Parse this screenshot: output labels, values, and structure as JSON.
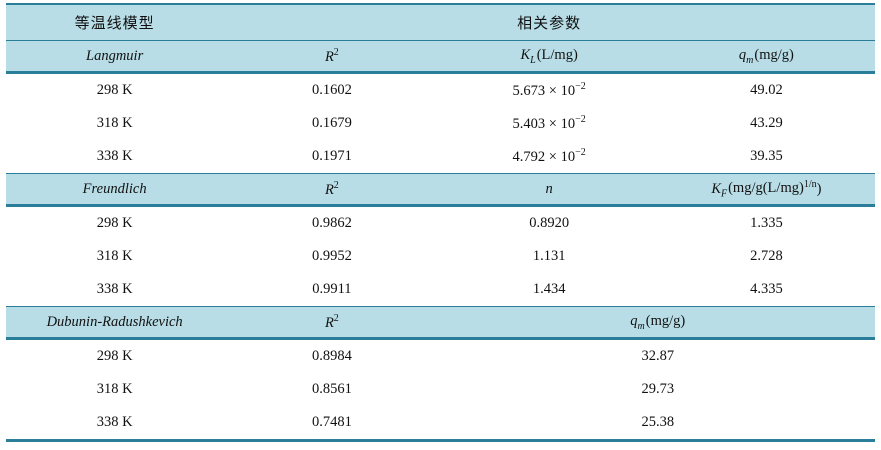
{
  "colors": {
    "header_bg": "#b8dde6",
    "rule": "#2b7e99",
    "text": "#111111"
  },
  "table": {
    "top_header": {
      "model_label": "等温线模型",
      "params_label": "相关参数"
    },
    "sections": [
      {
        "model": "Langmuir",
        "headers": {
          "c2": {
            "sym": "R",
            "sup": "2"
          },
          "c3": {
            "sym": "K",
            "sub": "L",
            "unit": "(L/mg)"
          },
          "c4": {
            "sym": "q",
            "sub": "m",
            "unit": "(mg/g)"
          }
        },
        "rows": [
          {
            "temp": "298 K",
            "r2": "0.1602",
            "c3_mant": "5.673 × 10",
            "c3_exp": "−2",
            "c4": "49.02"
          },
          {
            "temp": "318 K",
            "r2": "0.1679",
            "c3_mant": "5.403 × 10",
            "c3_exp": "−2",
            "c4": "43.29"
          },
          {
            "temp": "338 K",
            "r2": "0.1971",
            "c3_mant": "4.792 × 10",
            "c3_exp": "−2",
            "c4": "39.35"
          }
        ]
      },
      {
        "model": "Freundlich",
        "headers": {
          "c2": {
            "sym": "R",
            "sup": "2"
          },
          "c3": {
            "sym": "n"
          },
          "c4": {
            "sym": "K",
            "sub": "F",
            "unit_pre": "(mg/g(L/mg)",
            "sup": "1/n",
            "unit_post": ")"
          }
        },
        "rows": [
          {
            "temp": "298 K",
            "r2": "0.9862",
            "c3": "0.8920",
            "c4": "1.335"
          },
          {
            "temp": "318 K",
            "r2": "0.9952",
            "c3": "1.131",
            "c4": "2.728"
          },
          {
            "temp": "338 K",
            "r2": "0.9911",
            "c3": "1.434",
            "c4": "4.335"
          }
        ]
      },
      {
        "model": "Dubunin-Radushkevich",
        "headers": {
          "c2": {
            "sym": "R",
            "sup": "2"
          },
          "c34": {
            "sym": "q",
            "sub": "m",
            "unit": "(mg/g)"
          }
        },
        "rows": [
          {
            "temp": "298 K",
            "r2": "0.8984",
            "c34": "32.87"
          },
          {
            "temp": "318 K",
            "r2": "0.8561",
            "c34": "29.73"
          },
          {
            "temp": "338 K",
            "r2": "0.7481",
            "c34": "25.38"
          }
        ]
      }
    ]
  }
}
